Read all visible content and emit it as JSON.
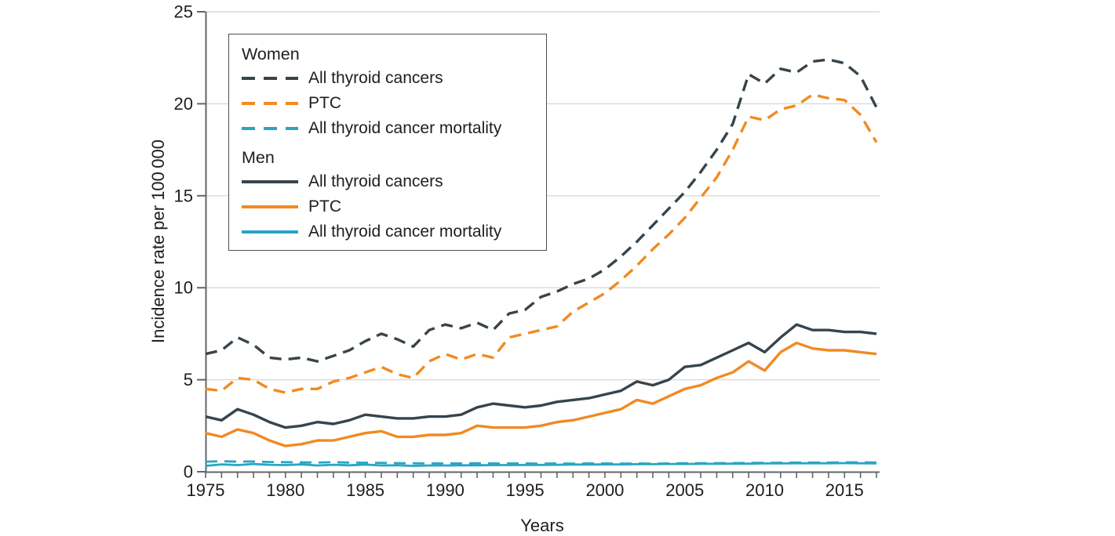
{
  "chart_data": {
    "type": "line",
    "title": "",
    "xlabel": "Years",
    "ylabel": "Incidence rate per 100 000",
    "ylim": [
      0,
      25
    ],
    "y_ticks": [
      0,
      5,
      10,
      15,
      20,
      25
    ],
    "x_tick_labels": [
      1975,
      1980,
      1985,
      1990,
      1995,
      2000,
      2005,
      2010,
      2015
    ],
    "grid": "horizontal",
    "legend_position": "upper-left-inside",
    "years": [
      1975,
      1976,
      1977,
      1978,
      1979,
      1980,
      1981,
      1982,
      1983,
      1984,
      1985,
      1986,
      1987,
      1988,
      1989,
      1990,
      1991,
      1992,
      1993,
      1994,
      1995,
      1996,
      1997,
      1998,
      1999,
      2000,
      2001,
      2002,
      2003,
      2004,
      2005,
      2006,
      2007,
      2008,
      2009,
      2010,
      2011,
      2012,
      2013,
      2014,
      2015,
      2016,
      2017
    ],
    "series": [
      {
        "name": "Women – All thyroid cancers",
        "group": "Women",
        "color": "#37444c",
        "dashed": true,
        "values": [
          6.4,
          6.6,
          7.3,
          6.9,
          6.2,
          6.1,
          6.2,
          6.0,
          6.3,
          6.6,
          7.1,
          7.5,
          7.2,
          6.8,
          7.7,
          8.0,
          7.8,
          8.1,
          7.7,
          8.6,
          8.8,
          9.5,
          9.8,
          10.2,
          10.5,
          11.0,
          11.7,
          12.5,
          13.4,
          14.3,
          15.2,
          16.3,
          17.5,
          18.9,
          21.6,
          21.1,
          21.9,
          21.7,
          22.3,
          22.4,
          22.2,
          21.5,
          19.8
        ]
      },
      {
        "name": "Women – PTC",
        "group": "Women",
        "color": "#f18a21",
        "dashed": true,
        "values": [
          4.5,
          4.4,
          5.1,
          5.0,
          4.5,
          4.3,
          4.5,
          4.5,
          4.9,
          5.1,
          5.4,
          5.7,
          5.3,
          5.1,
          6.0,
          6.4,
          6.1,
          6.4,
          6.2,
          7.3,
          7.5,
          7.7,
          7.9,
          8.7,
          9.2,
          9.7,
          10.4,
          11.2,
          12.1,
          12.9,
          13.8,
          14.9,
          16.0,
          17.5,
          19.3,
          19.1,
          19.7,
          19.9,
          20.5,
          20.3,
          20.2,
          19.4,
          17.9
        ]
      },
      {
        "name": "Women – All thyroid cancer mortality",
        "group": "Women",
        "color": "#29a5c4",
        "dashed": true,
        "values": [
          0.55,
          0.57,
          0.55,
          0.56,
          0.53,
          0.52,
          0.51,
          0.5,
          0.52,
          0.5,
          0.49,
          0.48,
          0.47,
          0.46,
          0.45,
          0.45,
          0.45,
          0.46,
          0.45,
          0.45,
          0.45,
          0.44,
          0.45,
          0.44,
          0.45,
          0.45,
          0.44,
          0.45,
          0.44,
          0.45,
          0.46,
          0.46,
          0.47,
          0.47,
          0.48,
          0.48,
          0.49,
          0.5,
          0.5,
          0.5,
          0.51,
          0.51,
          0.5
        ]
      },
      {
        "name": "Men – All thyroid cancers",
        "group": "Men",
        "color": "#37444c",
        "dashed": false,
        "values": [
          3.0,
          2.8,
          3.4,
          3.1,
          2.7,
          2.4,
          2.5,
          2.7,
          2.6,
          2.8,
          3.1,
          3.0,
          2.9,
          2.9,
          3.0,
          3.0,
          3.1,
          3.5,
          3.7,
          3.6,
          3.5,
          3.6,
          3.8,
          3.9,
          4.0,
          4.2,
          4.4,
          4.9,
          4.7,
          5.0,
          5.7,
          5.8,
          6.2,
          6.6,
          7.0,
          6.5,
          7.3,
          8.0,
          7.7,
          7.7,
          7.6,
          7.6,
          7.5
        ]
      },
      {
        "name": "Men – PTC",
        "group": "Men",
        "color": "#f18a21",
        "dashed": false,
        "values": [
          2.1,
          1.9,
          2.3,
          2.1,
          1.7,
          1.4,
          1.5,
          1.7,
          1.7,
          1.9,
          2.1,
          2.2,
          1.9,
          1.9,
          2.0,
          2.0,
          2.1,
          2.5,
          2.4,
          2.4,
          2.4,
          2.5,
          2.7,
          2.8,
          3.0,
          3.2,
          3.4,
          3.9,
          3.7,
          4.1,
          4.5,
          4.7,
          5.1,
          5.4,
          6.0,
          5.5,
          6.5,
          7.0,
          6.7,
          6.6,
          6.6,
          6.5,
          6.4
        ]
      },
      {
        "name": "Men – All thyroid cancer mortality",
        "group": "Men",
        "color": "#29a5c4",
        "dashed": false,
        "values": [
          0.32,
          0.4,
          0.36,
          0.42,
          0.38,
          0.36,
          0.4,
          0.34,
          0.38,
          0.35,
          0.39,
          0.34,
          0.35,
          0.32,
          0.34,
          0.34,
          0.35,
          0.35,
          0.36,
          0.36,
          0.37,
          0.37,
          0.38,
          0.39,
          0.39,
          0.4,
          0.4,
          0.41,
          0.41,
          0.42,
          0.42,
          0.43,
          0.43,
          0.44,
          0.44,
          0.45,
          0.45,
          0.46,
          0.46,
          0.46,
          0.47,
          0.46,
          0.45
        ]
      }
    ],
    "style": {
      "axis_color": "#636569",
      "grid_color": "#d9d9d9",
      "text_color": "#1e1e1e"
    }
  },
  "axes": {
    "y_title": "Incidence rate per 100 000",
    "x_title": "Years"
  },
  "legend": {
    "groups": [
      {
        "title": "Women",
        "items": [
          "All thyroid cancers",
          "PTC",
          "All thyroid cancer mortality"
        ]
      },
      {
        "title": "Men",
        "items": [
          "All thyroid cancers",
          "PTC",
          "All thyroid cancer mortality"
        ]
      }
    ]
  }
}
